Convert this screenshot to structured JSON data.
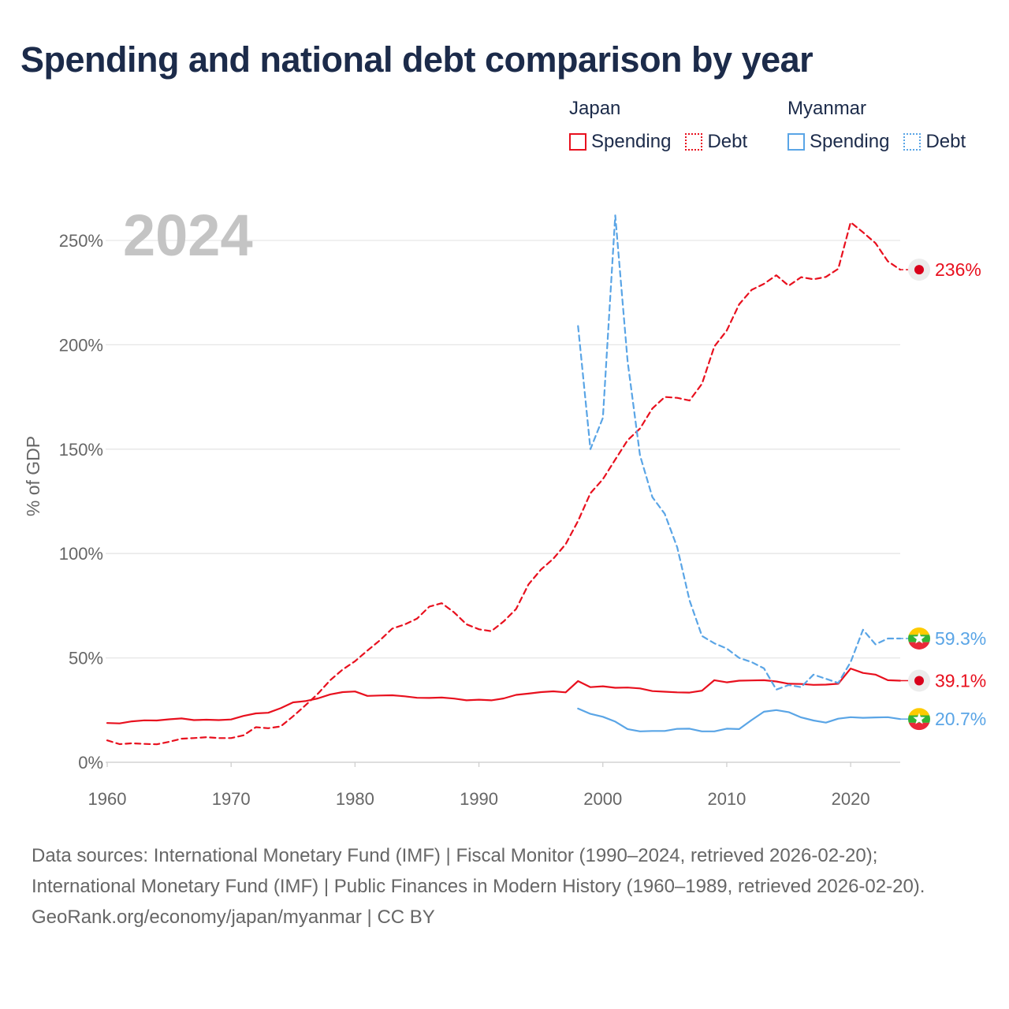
{
  "title": "Spending and national debt comparison by year",
  "legend": {
    "groups": [
      {
        "country": "Japan",
        "color": "#e8101e",
        "items": [
          {
            "label": "Spending",
            "style": "solid"
          },
          {
            "label": "Debt",
            "style": "dotted"
          }
        ]
      },
      {
        "country": "Myanmar",
        "color": "#5aa5e6",
        "items": [
          {
            "label": "Spending",
            "style": "solid"
          },
          {
            "label": "Debt",
            "style": "dotted"
          }
        ]
      }
    ]
  },
  "footer": {
    "sources": "Data sources: International Monetary Fund (IMF) | Fiscal Monitor (1990–2024, retrieved 2026-02-20); International Monetary Fund (IMF) | Public Finances in Modern History (1960–1989, retrieved 2026-02-20).",
    "attribution": "GeoRank.org/economy/japan/myanmar | CC BY"
  },
  "chart_data": {
    "type": "line",
    "title": "Spending and national debt comparison by year",
    "year_label": "2024",
    "xlabel": "",
    "ylabel": "% of GDP",
    "xlim": [
      1960,
      2024
    ],
    "ylim": [
      0,
      270
    ],
    "x_ticks": [
      1960,
      1970,
      1980,
      1990,
      2000,
      2010,
      2020
    ],
    "y_ticks": [
      0,
      50,
      100,
      150,
      200,
      250
    ],
    "y_tick_labels": [
      "0%",
      "50%",
      "100%",
      "150%",
      "200%",
      "250%"
    ],
    "grid": true,
    "series": [
      {
        "name": "Japan Spending",
        "country": "Japan",
        "kind": "spending",
        "color": "#e8101e",
        "dash": "solid",
        "end_label": "39.1%",
        "x": [
          1960,
          1961,
          1962,
          1963,
          1964,
          1965,
          1966,
          1967,
          1968,
          1969,
          1970,
          1971,
          1972,
          1973,
          1974,
          1975,
          1976,
          1977,
          1978,
          1979,
          1980,
          1981,
          1982,
          1983,
          1984,
          1985,
          1986,
          1987,
          1988,
          1989,
          1990,
          1991,
          1992,
          1993,
          1994,
          1995,
          1996,
          1997,
          1998,
          1999,
          2000,
          2001,
          2002,
          2003,
          2004,
          2005,
          2006,
          2007,
          2008,
          2009,
          2010,
          2011,
          2012,
          2013,
          2014,
          2015,
          2016,
          2017,
          2018,
          2019,
          2020,
          2021,
          2022,
          2023,
          2024
        ],
        "values": [
          18.8,
          18.6,
          19.6,
          20.1,
          20.0,
          20.6,
          21.0,
          20.2,
          20.4,
          20.2,
          20.5,
          22.2,
          23.4,
          23.7,
          25.9,
          28.7,
          29.3,
          30.6,
          32.5,
          33.6,
          33.9,
          31.8,
          32.0,
          32.1,
          31.6,
          30.9,
          30.8,
          31.0,
          30.5,
          29.7,
          30.0,
          29.7,
          30.6,
          32.3,
          32.9,
          33.6,
          34.0,
          33.5,
          38.9,
          36.0,
          36.4,
          35.7,
          35.8,
          35.4,
          34.1,
          33.8,
          33.5,
          33.4,
          34.3,
          39.3,
          38.3,
          39.1,
          39.2,
          39.3,
          38.7,
          37.6,
          37.5,
          37.1,
          37.2,
          37.6,
          44.9,
          42.8,
          42.0,
          39.3,
          39.1
        ]
      },
      {
        "name": "Japan Debt",
        "country": "Japan",
        "kind": "debt",
        "color": "#e8101e",
        "dash": "dashed",
        "end_label": "236%",
        "x": [
          1960,
          1961,
          1962,
          1963,
          1964,
          1965,
          1966,
          1967,
          1968,
          1969,
          1970,
          1971,
          1972,
          1973,
          1974,
          1975,
          1976,
          1977,
          1978,
          1979,
          1980,
          1981,
          1982,
          1983,
          1984,
          1985,
          1986,
          1987,
          1988,
          1989,
          1990,
          1991,
          1992,
          1993,
          1994,
          1995,
          1996,
          1997,
          1998,
          1999,
          2000,
          2001,
          2002,
          2003,
          2004,
          2005,
          2006,
          2007,
          2008,
          2009,
          2010,
          2011,
          2012,
          2013,
          2014,
          2015,
          2016,
          2017,
          2018,
          2019,
          2020,
          2021,
          2022,
          2023,
          2024
        ],
        "values": [
          10.5,
          8.7,
          9.1,
          8.8,
          8.6,
          9.8,
          11.3,
          11.6,
          12.0,
          11.6,
          11.6,
          12.9,
          16.8,
          16.3,
          17.2,
          22.0,
          27.3,
          32.8,
          39.3,
          44.4,
          48.4,
          53.5,
          58.4,
          64.0,
          66.0,
          68.8,
          74.6,
          76.2,
          71.8,
          66.1,
          63.7,
          62.8,
          67.5,
          73.4,
          85.2,
          92.3,
          97.5,
          104.5,
          115.6,
          128.9,
          135.6,
          145.0,
          154.3,
          159.9,
          169.5,
          175.0,
          174.6,
          173.3,
          181.3,
          199.2,
          206.8,
          219.4,
          226.3,
          229.2,
          233.3,
          228.3,
          232.4,
          231.4,
          232.5,
          236.4,
          258.7,
          253.9,
          248.7,
          240.0,
          236.0
        ]
      },
      {
        "name": "Myanmar Spending",
        "country": "Myanmar",
        "kind": "spending",
        "color": "#5aa5e6",
        "dash": "solid",
        "end_label": "20.7%",
        "x": [
          1998,
          1999,
          2000,
          2001,
          2002,
          2003,
          2004,
          2005,
          2006,
          2007,
          2008,
          2009,
          2010,
          2011,
          2012,
          2013,
          2014,
          2015,
          2016,
          2017,
          2018,
          2019,
          2020,
          2021,
          2022,
          2023,
          2024
        ],
        "values": [
          25.7,
          23.2,
          21.8,
          19.5,
          15.9,
          14.8,
          15.0,
          15.0,
          16.0,
          16.1,
          14.8,
          14.8,
          16.1,
          15.9,
          20.2,
          24.2,
          25.0,
          24.0,
          21.5,
          20.0,
          19.0,
          20.9,
          21.6,
          21.3,
          21.5,
          21.6,
          20.7
        ]
      },
      {
        "name": "Myanmar Debt",
        "country": "Myanmar",
        "kind": "debt",
        "color": "#5aa5e6",
        "dash": "dashed",
        "end_label": "59.3%",
        "x": [
          1998,
          1999,
          2000,
          2001,
          2002,
          2003,
          2004,
          2005,
          2006,
          2007,
          2008,
          2009,
          2010,
          2011,
          2012,
          2013,
          2014,
          2015,
          2016,
          2017,
          2018,
          2019,
          2020,
          2021,
          2022,
          2023,
          2024
        ],
        "values": [
          209.0,
          150.0,
          165.0,
          262.0,
          192.0,
          147.0,
          127.0,
          119.0,
          103.0,
          77.5,
          60.5,
          57.0,
          54.5,
          50.0,
          48.0,
          45.0,
          34.8,
          37.0,
          36.0,
          42.0,
          40.0,
          38.0,
          48.0,
          63.5,
          56.5,
          59.3,
          59.3
        ]
      }
    ]
  }
}
